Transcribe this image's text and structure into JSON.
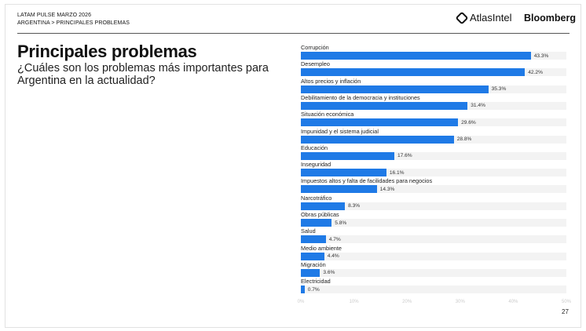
{
  "header": {
    "line1": "LATAM PULSE MARZO 2026",
    "line2": "ARGENTINA > PRINCIPALES PROBLEMAS",
    "logo_atlas": "AtlasIntel",
    "logo_bloomberg": "Bloomberg"
  },
  "title": "Principales problemas",
  "subtitle": "¿Cuáles son los problemas más importantes para Argentina en la actualidad?",
  "page_number": "27",
  "colors": {
    "bar": "#1f7ae6",
    "track": "#f3f3f3"
  },
  "chart_data": {
    "type": "bar",
    "orientation": "horizontal",
    "categories": [
      "Corrupción",
      "Desempleo",
      "Altos precios y inflación",
      "Debilitamiento de la democracia y instituciones",
      "Situación económica",
      "Impunidad y el sistema judicial",
      "Educación",
      "Inseguridad",
      "Impuestos altos y falta de facilidades para negocios",
      "Narcotráfico",
      "Obras públicas",
      "Salud",
      "Medio ambiente",
      "Migración",
      "Electricidad"
    ],
    "values": [
      43.3,
      42.2,
      35.3,
      31.4,
      29.6,
      28.8,
      17.6,
      16.1,
      14.3,
      8.3,
      5.8,
      4.7,
      4.4,
      3.6,
      0.7
    ],
    "value_labels": [
      "43.3%",
      "42.2%",
      "35.3%",
      "31.4%",
      "29.6%",
      "28.8%",
      "17.6%",
      "16.1%",
      "14.3%",
      "8.3%",
      "5.8%",
      "4.7%",
      "4.4%",
      "3.6%",
      "0.7%"
    ],
    "xlim": [
      0,
      50
    ],
    "x_ticks": [
      "0%",
      "10%",
      "20%",
      "30%",
      "40%",
      "50%"
    ],
    "grid": false
  }
}
